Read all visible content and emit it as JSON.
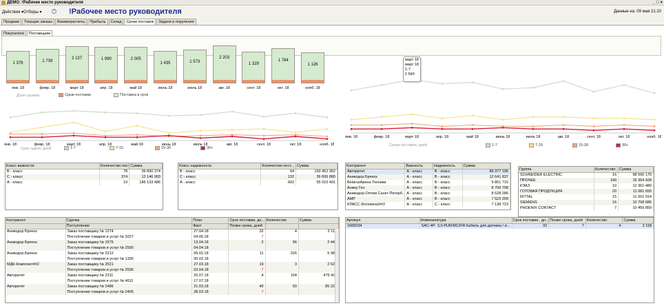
{
  "window": {
    "title": "ДЕМО: !Рабочее место руководителя",
    "buttons": [
      "_",
      "□",
      "×"
    ]
  },
  "toolbar": {
    "actions": "Действия ▾",
    "selections": "Отборы ▾",
    "help": "?"
  },
  "app_title": "!Рабочее место руководителя",
  "data_info": "Данные на: 09 мая 21:10",
  "tabs": [
    {
      "label": "Продажи"
    },
    {
      "label": "Текущие заказы"
    },
    {
      "label": "Взаиморасчеты"
    },
    {
      "label": "Прибыль"
    },
    {
      "label": "Склад"
    },
    {
      "label": "Сроки поставок",
      "active": true
    },
    {
      "label": "Задачи и поручения"
    }
  ],
  "subtabs": [
    {
      "label": "Покупатели"
    },
    {
      "label": "Поставщики",
      "active": true
    }
  ],
  "chart_data": [
    {
      "type": "bar",
      "categories": [
        "янв. 18",
        "февр. 18",
        "март 18",
        "апр. 18",
        "май 18",
        "июнь 18",
        "июль 18",
        "авг. 18",
        "сент. 18",
        "окт. 18",
        "нояб. 18"
      ],
      "values": [
        1379,
        1739,
        2137,
        1990,
        2005,
        1435,
        1573,
        2203,
        1329,
        1784,
        1126
      ],
      "labels": [
        "1 379",
        "1 739",
        "2 137",
        "1 990",
        "2 005",
        "1 435",
        "1 573",
        "2 203",
        "1 329",
        "1 784",
        "1 126"
      ],
      "legend_title": "Доля срывов",
      "series": [
        {
          "name": "Срыв поставки",
          "color": "#e8926a"
        },
        {
          "name": "Поставка в срок",
          "color": "#d6ead0"
        }
      ]
    },
    {
      "type": "line",
      "title": "Срок сдачи, дней",
      "categories": [
        "янв. 18",
        "февр. 18",
        "март 18",
        "апр. 18",
        "май 18",
        "июнь 18",
        "июль 18",
        "авг. 18",
        "сент. 18",
        "окт. 18",
        "нояб. 18"
      ],
      "series": [
        {
          "name": "1-7",
          "color": "#c7dcc0",
          "values": [
            28,
            34,
            36,
            34,
            33,
            30,
            31,
            35,
            29,
            33,
            28
          ]
        },
        {
          "name": "7-15",
          "color": "#f6e08a",
          "values": [
            10,
            16,
            22,
            11,
            18,
            9,
            12,
            13,
            14,
            10,
            14
          ]
        },
        {
          "name": "15-30",
          "color": "#f2a882",
          "values": [
            8,
            8,
            9,
            6,
            7,
            5,
            6,
            7,
            6,
            7,
            5
          ]
        },
        {
          "name": "30+",
          "color": "#d0213d",
          "values": [
            4,
            4,
            6,
            4,
            4,
            6,
            3,
            5,
            2,
            5,
            2
          ]
        }
      ]
    },
    {
      "type": "line",
      "title": "Сроки поставок, дней",
      "categories": [
        "янв. 18",
        "февр. 18",
        "март 18",
        "апр. 18",
        "май 18",
        "июнь 18",
        "июль 18",
        "авг. 18",
        "сент. 18",
        "окт. 18",
        "нояб. 18"
      ],
      "series": [
        {
          "name": "1-7",
          "color": "#c7dcc0",
          "values": [
            32,
            36,
            40,
            37,
            38,
            33,
            34,
            39,
            31,
            36,
            30
          ]
        },
        {
          "name": "7-15",
          "color": "#f6e08a",
          "values": [
            10,
            12,
            14,
            11,
            13,
            10,
            12,
            12,
            11,
            11,
            10
          ]
        },
        {
          "name": "15-30",
          "color": "#f2a882",
          "values": [
            6,
            6,
            7,
            5,
            6,
            5,
            5,
            6,
            5,
            6,
            5
          ]
        },
        {
          "name": "30+",
          "color": "#d0213d",
          "values": [
            3,
            3,
            4,
            3,
            3,
            4,
            3,
            3,
            2,
            3,
            2
          ]
        }
      ],
      "tooltip": {
        "month": "март 18",
        "line2": "март 18",
        "line3": "1-7",
        "value": "1 540"
      }
    }
  ],
  "importance_table": {
    "headers": [
      "Класс важности",
      "Количество пост...",
      "Сумма"
    ],
    "rows": [
      [
        "В - класс",
        "78",
        "39 890 374"
      ],
      [
        "С - класс",
        "374",
        "12 146 903"
      ],
      [
        "А - класс",
        "19",
        "186 133 486"
      ]
    ]
  },
  "reliability_table": {
    "headers": [
      "Класс надежности",
      "Количество пост...",
      "Сумма"
    ],
    "rows": [
      [
        "В - класс",
        "64",
        "150 452 362"
      ],
      [
        "С - класс",
        "132",
        "36 606 880"
      ],
      [
        "А - класс",
        "602",
        "55 015 491"
      ]
    ]
  },
  "counterparty_table": {
    "headers": [
      "Контрагент",
      "Важность",
      "Надежность",
      "Сумма"
    ],
    "rows": [
      [
        "Авторитет",
        "А - класс",
        "В - класс",
        "89 377 195"
      ],
      [
        "Аникодор Брянск",
        "А - класс",
        "В - класс",
        "12 641 837"
      ],
      [
        "BelarusАрена Техники",
        "А - класс",
        "В - класс",
        "9 851 715"
      ],
      [
        "Анкер Гео",
        "А - класс",
        "В - класс",
        "8 709 708"
      ],
      [
        "Аникодор-Оптим Санкт-Петерб...",
        "А - класс",
        "В - класс",
        "8 528 286"
      ],
      [
        "АМР",
        "А - класс",
        "В - класс",
        "7 523 209"
      ],
      [
        "КЛАСС (Коломна)##2",
        "А - класс",
        "С - класс",
        "7 138 723"
      ]
    ]
  },
  "group_table": {
    "headers": [
      "Группа",
      "Количество ...",
      "Сумма"
    ],
    "rows": [
      [
        "SCHNEIDER ELECTRIC",
        "16",
        "98 590 170"
      ],
      [
        "ПРОЧЕЕ",
        "189",
        "16 354 428"
      ],
      [
        "КЭАЗ",
        "10",
        "12 361 480"
      ],
      [
        "ГОТОВАЯ ПРОДУКЦИЯ",
        "20",
        "11 081 655"
      ],
      [
        "RITTAL",
        "15",
        "11 001 914"
      ],
      [
        "SIEMENS",
        "16",
        "10 708 686"
      ],
      [
        "PHOENIX CONTACT",
        "7",
        "10 450 859"
      ]
    ]
  },
  "deals_table": {
    "headers1": [
      "Контрагент",
      "Сделка",
      "План",
      "Срок поставки, дн...",
      "Количество",
      "Сумма"
    ],
    "headers2": [
      "",
      "Поступление",
      "Факт",
      "Позже срока, дней",
      "",
      ""
    ],
    "rows": [
      {
        "c": "Аникодор Брянск",
        "d1": "Заказ поставщику № 1274",
        "d2": "Поступление товаров и услуг № 3227",
        "p1": "27.04.18",
        "p2": "04.05.18",
        "s1": "32",
        "s2": "7",
        "q": "4",
        "sum": "2 118"
      },
      {
        "c": "Аникодор Брянск",
        "d1": "Заказ поставщику № 1575",
        "d2": "Поступление товаров и услуг № 2590",
        "p1": "13.04.18",
        "p2": "04.04.18",
        "s1": "2",
        "s2": "",
        "q": "56",
        "sum": "2 449"
      },
      {
        "c": "Аникодор Брянск",
        "d1": "Заказ поставщику № 2212",
        "d2": "Поступление товаров и услуг № 1335",
        "p1": "09.02.18",
        "p2": "05.02.18",
        "s1": "11",
        "s2": "",
        "q": "226",
        "sum": "5 984"
      },
      {
        "c": "МДК-Комплект##2",
        "d1": "Заказ поставщику № 2521",
        "d2": "Поступление товаров и услуг № 2536",
        "p1": "27.03.18",
        "p2": "03.04.18",
        "s1": "19",
        "s2": "7",
        "q": "3",
        "sum": "2 626"
      },
      {
        "c": "Авторитет",
        "d1": "Заказ поставщику № 2311",
        "d2": "Поступление товаров и услуг № 4611",
        "p1": "20.07.18",
        "p2": "17.07.18",
        "s1": "4",
        "s2": "",
        "q": "104",
        "sum": "475 411"
      },
      {
        "c": "Авторитет",
        "d1": "Заказ поставщику № 2486",
        "d2": "Поступление товаров и услуг № 2405",
        "p1": "21.03.18",
        "p2": "28.03.18",
        "s1": "40",
        "s2": "7",
        "q": "50",
        "sum": "85 220"
      }
    ]
  },
  "articles_table": {
    "headers": [
      "Артикул",
      "Номенклатура",
      "Срок поставки , дн...",
      "Позже срока, дней",
      "Количество",
      "Сумма"
    ],
    "rows": [
      [
        "1668234",
        "SAC-4P- 3,0-PUR/M12FR Кабель для датчика / и...",
        "32",
        "7",
        "4",
        "2 118"
      ]
    ]
  }
}
